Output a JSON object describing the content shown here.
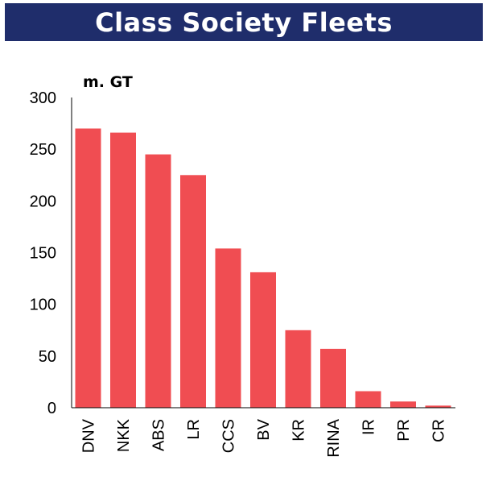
{
  "title": "Class Society Fleets",
  "chart_data": {
    "type": "bar",
    "unit_label": "m. GT",
    "categories": [
      "DNV",
      "NKK",
      "ABS",
      "LR",
      "CCS",
      "BV",
      "KR",
      "RINA",
      "IR",
      "PR",
      "CR"
    ],
    "values": [
      270,
      266,
      245,
      225,
      154,
      131,
      75,
      57,
      16,
      6,
      2
    ],
    "ylim": [
      0,
      300
    ],
    "yticks": [
      0,
      50,
      100,
      150,
      200,
      250,
      300
    ],
    "bar_color": "#f04d52",
    "grid": false,
    "legend": "none"
  }
}
